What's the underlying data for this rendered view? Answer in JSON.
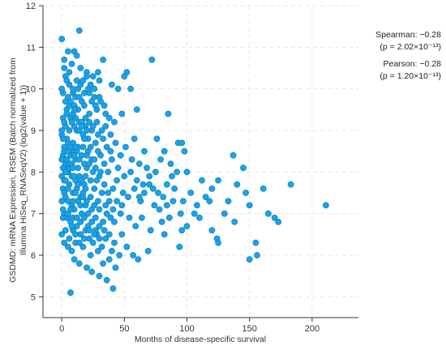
{
  "chart_data": {
    "type": "scatter",
    "title": "",
    "xlabel": "Months of disease-specific survival",
    "ylabel_lines": [
      "GSDMD: mRNA Expression, RSEM (Batch normalized from",
      "Illumina HiSeq_RNASeqV2) (log2(value + 1))"
    ],
    "xlim": [
      -15,
      237
    ],
    "ylim": [
      4.5,
      12
    ],
    "xticks": [
      0,
      50,
      100,
      150,
      200
    ],
    "yticks": [
      5,
      6,
      7,
      8,
      9,
      10,
      11,
      12
    ],
    "xtick_labels": [
      "0",
      "50",
      "100",
      "150",
      "200"
    ],
    "ytick_labels": [
      "5",
      "6",
      "7",
      "8",
      "9",
      "10",
      "11",
      "12"
    ],
    "grid": true,
    "marker_color": "#1aa3e8",
    "marker_edge": "#0b74b0",
    "points": [
      [
        0,
        11.2
      ],
      [
        14,
        11.4
      ],
      [
        5,
        10.9
      ],
      [
        2,
        10.7
      ],
      [
        10,
        10.9
      ],
      [
        12,
        10.8
      ],
      [
        33,
        10.7
      ],
      [
        72,
        10.7
      ],
      [
        52,
        10.4
      ],
      [
        8,
        10.6
      ],
      [
        15,
        10.5
      ],
      [
        20,
        10.4
      ],
      [
        25,
        10.3
      ],
      [
        30,
        10.2
      ],
      [
        40,
        10.1
      ],
      [
        45,
        10.0
      ],
      [
        50,
        10.3
      ],
      [
        55,
        10.0
      ],
      [
        60,
        9.5
      ],
      [
        85,
        9.4
      ],
      [
        3,
        10.3
      ],
      [
        6,
        10.1
      ],
      [
        9,
        9.9
      ],
      [
        11,
        9.8
      ],
      [
        13,
        10.0
      ],
      [
        16,
        9.7
      ],
      [
        18,
        9.6
      ],
      [
        22,
        9.9
      ],
      [
        26,
        9.8
      ],
      [
        28,
        9.5
      ],
      [
        31,
        9.7
      ],
      [
        35,
        9.4
      ],
      [
        38,
        9.3
      ],
      [
        42,
        9.2
      ],
      [
        48,
        9.4
      ],
      [
        4,
        9.5
      ],
      [
        7,
        9.3
      ],
      [
        10,
        9.1
      ],
      [
        12,
        9.0
      ],
      [
        14,
        9.2
      ],
      [
        17,
        8.9
      ],
      [
        19,
        9.1
      ],
      [
        21,
        8.8
      ],
      [
        24,
        9.0
      ],
      [
        27,
        8.7
      ],
      [
        29,
        8.9
      ],
      [
        33,
        8.8
      ],
      [
        36,
        8.6
      ],
      [
        39,
        8.5
      ],
      [
        43,
        8.7
      ],
      [
        47,
        8.4
      ],
      [
        51,
        8.6
      ],
      [
        56,
        8.3
      ],
      [
        62,
        8.2
      ],
      [
        68,
        8.1
      ],
      [
        76,
        8.8
      ],
      [
        79,
        8.3
      ],
      [
        82,
        8.5
      ],
      [
        87,
        8.2
      ],
      [
        93,
        8.7
      ],
      [
        96,
        8.7
      ],
      [
        98,
        8.5
      ],
      [
        88,
        7.9
      ],
      [
        92,
        8.0
      ],
      [
        1,
        8.4
      ],
      [
        3,
        8.2
      ],
      [
        5,
        8.0
      ],
      [
        8,
        7.9
      ],
      [
        11,
        7.8
      ],
      [
        14,
        7.9
      ],
      [
        18,
        7.7
      ],
      [
        20,
        8.1
      ],
      [
        23,
        7.8
      ],
      [
        26,
        7.6
      ],
      [
        30,
        7.9
      ],
      [
        34,
        7.7
      ],
      [
        37,
        7.5
      ],
      [
        41,
        7.6
      ],
      [
        44,
        7.8
      ],
      [
        49,
        7.5
      ],
      [
        53,
        7.4
      ],
      [
        58,
        7.6
      ],
      [
        63,
        7.3
      ],
      [
        66,
        7.5
      ],
      [
        70,
        7.7
      ],
      [
        74,
        7.2
      ],
      [
        78,
        7.1
      ],
      [
        81,
        7.4
      ],
      [
        84,
        7.2
      ],
      [
        89,
        7.3
      ],
      [
        95,
        7.0
      ],
      [
        97,
        7.3
      ],
      [
        103,
        7.5
      ],
      [
        106,
        7.0
      ],
      [
        110,
        6.9
      ],
      [
        115,
        7.4
      ],
      [
        120,
        7.6
      ],
      [
        125,
        7.8
      ],
      [
        130,
        7.0
      ],
      [
        133,
        7.3
      ],
      [
        137,
        8.4
      ],
      [
        140,
        7.7
      ],
      [
        145,
        8.1
      ],
      [
        147,
        7.5
      ],
      [
        150,
        7.2
      ],
      [
        161,
        7.6
      ],
      [
        165,
        7.0
      ],
      [
        170,
        6.9
      ],
      [
        173,
        6.8
      ],
      [
        183,
        7.7
      ],
      [
        211,
        7.2
      ],
      [
        2,
        7.0
      ],
      [
        4,
        6.9
      ],
      [
        7,
        6.8
      ],
      [
        9,
        6.6
      ],
      [
        12,
        6.7
      ],
      [
        15,
        6.5
      ],
      [
        19,
        6.6
      ],
      [
        22,
        6.4
      ],
      [
        25,
        6.3
      ],
      [
        28,
        6.5
      ],
      [
        32,
        6.2
      ],
      [
        35,
        6.4
      ],
      [
        40,
        6.1
      ],
      [
        46,
        6.0
      ],
      [
        52,
        6.2
      ],
      [
        57,
        6.0
      ],
      [
        61,
        5.9
      ],
      [
        69,
        6.1
      ],
      [
        82,
        6.5
      ],
      [
        94,
        6.2
      ],
      [
        120,
        6.6
      ],
      [
        124,
        6.4
      ],
      [
        125,
        6.3
      ],
      [
        138,
        6.8
      ],
      [
        155,
        6.3
      ],
      [
        156,
        6.0
      ],
      [
        10,
        5.9
      ],
      [
        14,
        5.8
      ],
      [
        20,
        5.7
      ],
      [
        24,
        5.6
      ],
      [
        30,
        5.5
      ],
      [
        36,
        5.4
      ],
      [
        38,
        5.9
      ],
      [
        43,
        5.7
      ],
      [
        41,
        5.2
      ],
      [
        7,
        5.1
      ],
      [
        5,
        8.7
      ],
      [
        8,
        8.5
      ],
      [
        11,
        8.3
      ],
      [
        13,
        8.6
      ],
      [
        16,
        8.4
      ],
      [
        18,
        8.2
      ],
      [
        21,
        8.5
      ],
      [
        24,
        8.3
      ],
      [
        27,
        8.1
      ],
      [
        31,
        8.4
      ],
      [
        34,
        8.2
      ],
      [
        37,
        8.0
      ],
      [
        40,
        8.3
      ],
      [
        45,
        8.1
      ],
      [
        50,
        7.9
      ],
      [
        55,
        8.0
      ],
      [
        60,
        7.8
      ],
      [
        65,
        7.7
      ],
      [
        73,
        7.6
      ],
      [
        77,
        7.5
      ],
      [
        80,
        6.8
      ],
      [
        86,
        6.9
      ],
      [
        100,
        6.7
      ],
      [
        96,
        6.6
      ],
      [
        1,
        9.9
      ],
      [
        3,
        9.7
      ],
      [
        6,
        9.6
      ],
      [
        9,
        9.4
      ],
      [
        11,
        9.3
      ],
      [
        13,
        9.5
      ],
      [
        16,
        9.2
      ],
      [
        19,
        9.3
      ],
      [
        22,
        9.4
      ],
      [
        25,
        9.1
      ],
      [
        28,
        9.2
      ],
      [
        32,
        9.0
      ],
      [
        35,
        9.1
      ],
      [
        39,
        8.9
      ],
      [
        2,
        10.5
      ],
      [
        4,
        10.2
      ],
      [
        6,
        10.4
      ],
      [
        9,
        10.0
      ],
      [
        12,
        10.2
      ],
      [
        15,
        10.1
      ],
      [
        18,
        9.9
      ],
      [
        21,
        10.0
      ],
      [
        24,
        9.7
      ],
      [
        27,
        9.6
      ],
      [
        30,
        9.8
      ],
      [
        34,
        9.6
      ],
      [
        1,
        7.6
      ],
      [
        3,
        7.4
      ],
      [
        5,
        7.3
      ],
      [
        8,
        7.2
      ],
      [
        10,
        7.1
      ],
      [
        13,
        7.3
      ],
      [
        16,
        7.0
      ],
      [
        19,
        7.2
      ],
      [
        21,
        7.0
      ],
      [
        24,
        7.1
      ],
      [
        27,
        6.9
      ],
      [
        30,
        7.1
      ],
      [
        33,
        6.8
      ],
      [
        36,
        7.0
      ],
      [
        39,
        6.9
      ],
      [
        42,
        6.8
      ],
      [
        47,
        7.0
      ],
      [
        54,
        6.9
      ],
      [
        59,
        6.7
      ],
      [
        64,
        6.9
      ],
      [
        71,
        6.6
      ],
      [
        2,
        6.3
      ],
      [
        5,
        6.2
      ],
      [
        8,
        6.1
      ],
      [
        11,
        6.3
      ],
      [
        17,
        6.2
      ],
      [
        23,
        6.0
      ],
      [
        29,
        6.1
      ],
      [
        33,
        5.8
      ],
      [
        6,
        7.7
      ],
      [
        9,
        7.5
      ],
      [
        12,
        7.6
      ],
      [
        15,
        7.4
      ],
      [
        17,
        7.5
      ],
      [
        20,
        7.3
      ],
      [
        23,
        7.4
      ],
      [
        26,
        7.2
      ],
      [
        29,
        7.3
      ],
      [
        32,
        7.5
      ],
      [
        35,
        7.2
      ],
      [
        38,
        7.3
      ],
      [
        41,
        7.1
      ],
      [
        44,
        7.3
      ],
      [
        48,
        7.2
      ],
      [
        0,
        8.9
      ],
      [
        2,
        8.6
      ],
      [
        4,
        8.8
      ],
      [
        7,
        8.4
      ],
      [
        9,
        8.7
      ],
      [
        12,
        8.5
      ],
      [
        14,
        8.3
      ],
      [
        17,
        8.6
      ],
      [
        20,
        8.4
      ],
      [
        23,
        8.6
      ],
      [
        26,
        8.3
      ],
      [
        29,
        8.5
      ],
      [
        0,
        7.9
      ],
      [
        2,
        7.8
      ],
      [
        4,
        8.0
      ],
      [
        6,
        8.1
      ],
      [
        10,
        7.9
      ],
      [
        13,
        8.1
      ],
      [
        16,
        7.8
      ],
      [
        19,
        7.9
      ],
      [
        22,
        8.2
      ],
      [
        25,
        8.0
      ],
      [
        28,
        7.8
      ],
      [
        31,
        8.0
      ],
      [
        0,
        10.0
      ],
      [
        1,
        9.3
      ],
      [
        3,
        9.1
      ],
      [
        5,
        9.8
      ],
      [
        7,
        9.7
      ],
      [
        10,
        9.6
      ],
      [
        14,
        9.8
      ],
      [
        17,
        10.2
      ],
      [
        20,
        10.3
      ],
      [
        23,
        10.1
      ],
      [
        26,
        10.0
      ],
      [
        29,
        10.4
      ],
      [
        0,
        6.5
      ],
      [
        1,
        6.9
      ],
      [
        3,
        6.6
      ],
      [
        6,
        6.4
      ],
      [
        9,
        6.9
      ],
      [
        12,
        6.9
      ],
      [
        15,
        6.8
      ],
      [
        18,
        6.9
      ],
      [
        21,
        6.7
      ],
      [
        24,
        6.8
      ],
      [
        27,
        6.6
      ],
      [
        30,
        6.7
      ],
      [
        0,
        9.0
      ],
      [
        1,
        8.8
      ],
      [
        2,
        9.2
      ],
      [
        4,
        9.4
      ],
      [
        6,
        9.0
      ],
      [
        8,
        9.2
      ],
      [
        10,
        9.5
      ],
      [
        14,
        9.0
      ],
      [
        16,
        9.1
      ],
      [
        18,
        8.8
      ],
      [
        20,
        9.0
      ],
      [
        22,
        9.2
      ],
      [
        0,
        7.3
      ],
      [
        1,
        7.1
      ],
      [
        2,
        7.5
      ],
      [
        3,
        7.8
      ],
      [
        5,
        7.6
      ],
      [
        7,
        7.1
      ],
      [
        9,
        7.3
      ],
      [
        11,
        7.5
      ],
      [
        13,
        7.7
      ],
      [
        15,
        7.2
      ],
      [
        17,
        7.4
      ],
      [
        19,
        7.6
      ],
      [
        0,
        8.3
      ],
      [
        1,
        8.1
      ],
      [
        2,
        8.5
      ],
      [
        3,
        8.0
      ],
      [
        4,
        8.3
      ],
      [
        5,
        8.5
      ],
      [
        6,
        8.2
      ],
      [
        7,
        8.6
      ],
      [
        8,
        8.2
      ],
      [
        9,
        8.1
      ],
      [
        10,
        8.4
      ],
      [
        11,
        8.6
      ],
      [
        5,
        7.0
      ],
      [
        8,
        6.7
      ],
      [
        11,
        6.5
      ],
      [
        14,
        6.3
      ],
      [
        18,
        6.4
      ],
      [
        22,
        6.6
      ],
      [
        26,
        6.5
      ],
      [
        30,
        6.4
      ],
      [
        34,
        6.6
      ],
      [
        38,
        6.5
      ],
      [
        42,
        6.3
      ],
      [
        48,
        6.5
      ],
      [
        58,
        8.8
      ],
      [
        62,
        7.4
      ],
      [
        66,
        8.5
      ],
      [
        70,
        7.9
      ],
      [
        75,
        8.0
      ],
      [
        84,
        7.7
      ],
      [
        90,
        7.6
      ],
      [
        100,
        8.0
      ],
      [
        108,
        7.2
      ],
      [
        112,
        7.8
      ],
      [
        118,
        7.3
      ],
      [
        150,
        5.9
      ]
    ]
  },
  "stats": {
    "spearman": "Spearman: −0.28",
    "spearman_p": "(p = 2.02×10⁻¹³)",
    "pearson": "Pearson: −0.28",
    "pearson_p": "(p = 1.20×10⁻¹³)"
  }
}
